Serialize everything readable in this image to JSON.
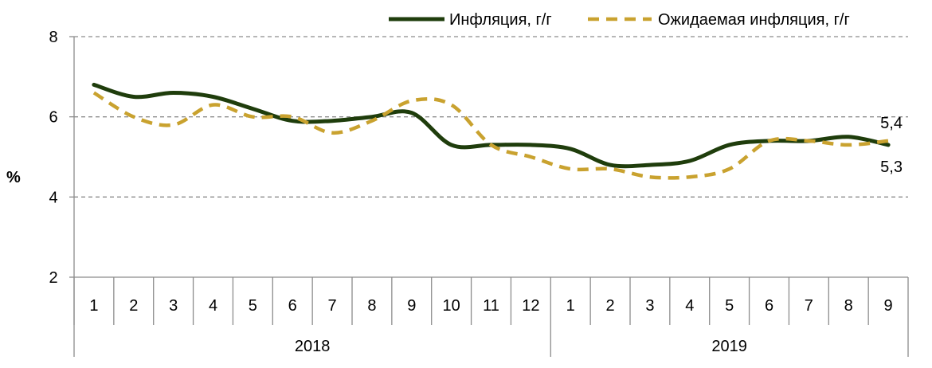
{
  "chart_data": {
    "type": "line",
    "title": "",
    "ylabel": "%",
    "xlabel": "",
    "ylim": [
      2,
      8
    ],
    "yticks": [
      "2",
      "4",
      "6",
      "8"
    ],
    "grid": true,
    "legend_position": "top-right",
    "months": [
      "1",
      "2",
      "3",
      "4",
      "5",
      "6",
      "7",
      "8",
      "9",
      "10",
      "11",
      "12",
      "1",
      "2",
      "3",
      "4",
      "5",
      "6",
      "7",
      "8",
      "9"
    ],
    "year_groups": [
      {
        "label": "2018",
        "count": 12
      },
      {
        "label": "2019",
        "count": 9
      }
    ],
    "series": [
      {
        "name": "Инфляция, г/г",
        "color": "#1f3d0c",
        "style": "solid",
        "values": [
          6.8,
          6.5,
          6.6,
          6.5,
          6.2,
          5.9,
          5.9,
          6.0,
          6.1,
          5.3,
          5.3,
          5.3,
          5.2,
          4.8,
          4.8,
          4.9,
          5.3,
          5.4,
          5.4,
          5.5,
          5.3
        ]
      },
      {
        "name": "Ожидаемая инфляция, г/г",
        "color": "#c9a22f",
        "style": "dashed",
        "values": [
          6.6,
          6.0,
          5.8,
          6.3,
          6.0,
          6.0,
          5.6,
          5.9,
          6.4,
          6.3,
          5.3,
          5.0,
          4.7,
          4.7,
          4.5,
          4.5,
          4.7,
          5.4,
          5.4,
          5.3,
          5.4
        ]
      }
    ],
    "annotations": [
      {
        "text": "5,4",
        "series": 1,
        "index": 20
      },
      {
        "text": "5,3",
        "series": 0,
        "index": 20
      }
    ]
  }
}
